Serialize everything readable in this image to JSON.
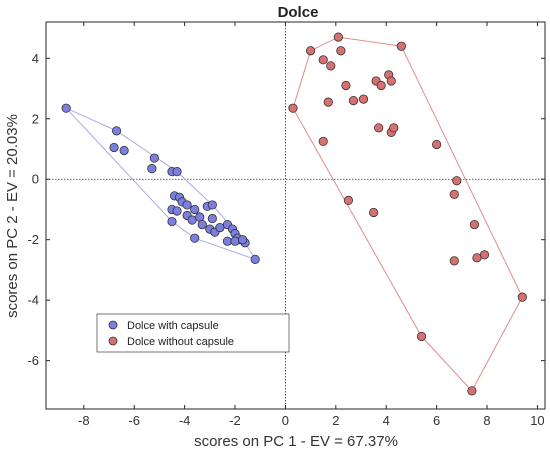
{
  "chart_data": {
    "type": "scatter",
    "title": "Dolce",
    "xlabel": "scores on PC 1 - EV = 67.37%",
    "ylabel": "scores on PC 2 - EV = 20.03%",
    "xlim": [
      -9.5,
      10.3
    ],
    "ylim": [
      -7.6,
      5.2
    ],
    "xticks": [
      -8,
      -6,
      -4,
      -2,
      0,
      2,
      4,
      6,
      8,
      10
    ],
    "yticks": [
      -6,
      -4,
      -2,
      0,
      2,
      4
    ],
    "grid": false,
    "reference_lines": {
      "x": 0,
      "y": 0
    },
    "legend_position": "lower-left",
    "series": [
      {
        "name": "Dolce with capsule",
        "marker_color": "#7b7fe0",
        "hull_color": "#a9abe6",
        "points": [
          [
            -8.7,
            2.35
          ],
          [
            -6.7,
            1.6
          ],
          [
            -6.8,
            1.05
          ],
          [
            -6.4,
            0.95
          ],
          [
            -5.2,
            0.7
          ],
          [
            -5.3,
            0.35
          ],
          [
            -4.5,
            0.25
          ],
          [
            -4.3,
            0.25
          ],
          [
            -4.4,
            -0.55
          ],
          [
            -4.2,
            -0.6
          ],
          [
            -4.1,
            -0.75
          ],
          [
            -3.9,
            -0.85
          ],
          [
            -4.5,
            -1.0
          ],
          [
            -4.3,
            -1.05
          ],
          [
            -3.6,
            -1.0
          ],
          [
            -3.1,
            -0.9
          ],
          [
            -2.9,
            -0.85
          ],
          [
            -4.5,
            -1.4
          ],
          [
            -3.9,
            -1.2
          ],
          [
            -3.7,
            -1.35
          ],
          [
            -3.4,
            -1.25
          ],
          [
            -3.3,
            -1.5
          ],
          [
            -2.9,
            -1.3
          ],
          [
            -3.0,
            -1.65
          ],
          [
            -2.8,
            -1.75
          ],
          [
            -2.6,
            -1.6
          ],
          [
            -2.3,
            -1.5
          ],
          [
            -2.1,
            -1.65
          ],
          [
            -2.0,
            -1.8
          ],
          [
            -1.8,
            -2.0
          ],
          [
            -1.9,
            -1.95
          ],
          [
            -2.3,
            -2.05
          ],
          [
            -2.0,
            -2.05
          ],
          [
            -1.6,
            -2.1
          ],
          [
            -1.7,
            -2.0
          ],
          [
            -3.6,
            -1.95
          ],
          [
            -1.2,
            -2.65
          ]
        ]
      },
      {
        "name": "Dolce without capsule",
        "marker_color": "#d97070",
        "hull_color": "#e38b8b",
        "points": [
          [
            0.3,
            2.35
          ],
          [
            1.0,
            4.25
          ],
          [
            2.1,
            4.7
          ],
          [
            2.2,
            4.25
          ],
          [
            1.5,
            3.95
          ],
          [
            1.8,
            3.75
          ],
          [
            2.4,
            3.1
          ],
          [
            1.7,
            2.55
          ],
          [
            2.7,
            2.6
          ],
          [
            3.1,
            2.65
          ],
          [
            3.6,
            3.25
          ],
          [
            3.8,
            3.1
          ],
          [
            4.1,
            3.45
          ],
          [
            4.2,
            3.25
          ],
          [
            4.6,
            4.4
          ],
          [
            4.2,
            1.55
          ],
          [
            4.3,
            1.7
          ],
          [
            3.7,
            1.7
          ],
          [
            1.5,
            1.25
          ],
          [
            6.0,
            1.15
          ],
          [
            2.5,
            -0.7
          ],
          [
            3.5,
            -1.1
          ],
          [
            6.8,
            -0.05
          ],
          [
            6.7,
            -0.5
          ],
          [
            7.5,
            -1.5
          ],
          [
            7.6,
            -2.6
          ],
          [
            7.9,
            -2.5
          ],
          [
            6.7,
            -2.7
          ],
          [
            5.4,
            -5.2
          ],
          [
            9.4,
            -3.9
          ],
          [
            7.4,
            -7.0
          ]
        ]
      }
    ]
  }
}
